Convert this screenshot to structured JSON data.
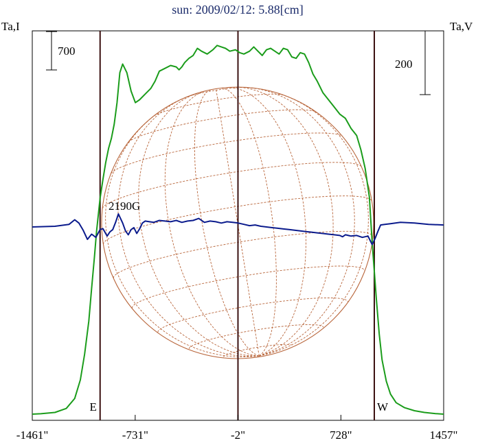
{
  "chart_data": {
    "type": "line",
    "title": "sun: 2009/02/12: 5.88[cm]",
    "left_axis_label": "Ta,I",
    "right_axis_label": "Ta,V",
    "x_ticks": [
      "-1461\"",
      "-731\"",
      "-2\"",
      "728\"",
      "1457\""
    ],
    "x_tick_values": [
      -1461,
      -731,
      -2,
      728,
      1457
    ],
    "xlim": [
      -1461,
      1457
    ],
    "limb_markers": [
      {
        "label": "E",
        "x": -980
      },
      {
        "label": "W",
        "x": 965
      }
    ],
    "center_line_x": -2,
    "scale_bars": [
      {
        "label": "700",
        "side": "left"
      },
      {
        "label": "200",
        "side": "right"
      }
    ],
    "annotations": [
      {
        "text": "2190G",
        "x": -920
      }
    ],
    "colors": {
      "intensity": "#1a9c1a",
      "polarization": "#0a1a8c",
      "limb_lines": "#3a1010",
      "disk": "#b8653a",
      "title": "#1a2a6a"
    },
    "series": [
      {
        "key": "intensity",
        "x": [
          -1461,
          -1400,
          -1300,
          -1220,
          -1160,
          -1120,
          -1090,
          -1060,
          -1040,
          -1020,
          -1005,
          -990,
          -980,
          -960,
          -940,
          -920,
          -900,
          -880,
          -860,
          -840,
          -820,
          -790,
          -760,
          -730,
          -700,
          -660,
          -620,
          -590,
          -560,
          -520,
          -480,
          -440,
          -420,
          -400,
          -380,
          -350,
          -320,
          -290,
          -260,
          -220,
          -180,
          -150,
          -120,
          -90,
          -60,
          -20,
          10,
          40,
          80,
          110,
          140,
          170,
          200,
          230,
          260,
          290,
          320,
          350,
          380,
          410,
          440,
          470,
          500,
          530,
          560,
          600,
          640,
          680,
          720,
          760,
          800,
          840,
          870,
          900,
          930,
          950,
          965,
          980,
          1000,
          1020,
          1050,
          1080,
          1120,
          1180,
          1250,
          1320,
          1400,
          1457
        ],
        "y": [
          0,
          3,
          12,
          40,
          110,
          240,
          420,
          650,
          880,
          1100,
          1280,
          1420,
          1510,
          1640,
          1760,
          1860,
          1930,
          2030,
          2180,
          2390,
          2450,
          2390,
          2260,
          2180,
          2200,
          2240,
          2280,
          2330,
          2400,
          2420,
          2440,
          2430,
          2410,
          2430,
          2460,
          2490,
          2510,
          2560,
          2540,
          2520,
          2550,
          2580,
          2570,
          2560,
          2540,
          2550,
          2530,
          2520,
          2540,
          2570,
          2540,
          2510,
          2550,
          2560,
          2540,
          2520,
          2560,
          2550,
          2500,
          2490,
          2530,
          2520,
          2460,
          2380,
          2330,
          2250,
          2200,
          2150,
          2100,
          2070,
          2000,
          1950,
          1850,
          1720,
          1520,
          1200,
          1000,
          800,
          560,
          380,
          230,
          140,
          80,
          45,
          24,
          12,
          4,
          0
        ]
      },
      {
        "key": "polarization",
        "x": [
          -1461,
          -1300,
          -1200,
          -1160,
          -1130,
          -1100,
          -1070,
          -1040,
          -1010,
          -980,
          -960,
          -930,
          -910,
          -890,
          -870,
          -850,
          -820,
          -800,
          -780,
          -760,
          -740,
          -720,
          -700,
          -680,
          -660,
          -630,
          -600,
          -560,
          -520,
          -480,
          -440,
          -400,
          -360,
          -320,
          -280,
          -240,
          -200,
          -160,
          -120,
          -80,
          -40,
          0,
          40,
          80,
          120,
          160,
          200,
          240,
          280,
          320,
          360,
          400,
          440,
          480,
          520,
          560,
          600,
          640,
          680,
          720,
          740,
          760,
          800,
          840,
          880,
          920,
          950,
          970,
          990,
          1010,
          1040,
          1080,
          1150,
          1250,
          1350,
          1457
        ],
        "y": [
          0,
          2,
          8,
          22,
          12,
          -10,
          -38,
          -22,
          -32,
          -8,
          -5,
          -28,
          -15,
          -8,
          14,
          40,
          12,
          -12,
          -24,
          -8,
          -2,
          -20,
          -6,
          12,
          18,
          16,
          14,
          20,
          18,
          16,
          20,
          14,
          18,
          20,
          26,
          14,
          18,
          16,
          12,
          16,
          14,
          12,
          8,
          4,
          6,
          2,
          0,
          -2,
          -4,
          -6,
          -8,
          -10,
          -12,
          -14,
          -16,
          -18,
          -20,
          -22,
          -24,
          -26,
          -30,
          -24,
          -28,
          -26,
          -32,
          -28,
          -54,
          -36,
          -14,
          6,
          8,
          10,
          14,
          12,
          8,
          6
        ]
      }
    ],
    "intensity_scale": {
      "y_bottom": 0,
      "y_top": 2620
    },
    "polarization_scale": {
      "zero_px": 331,
      "units_per_px": 2.1
    }
  }
}
